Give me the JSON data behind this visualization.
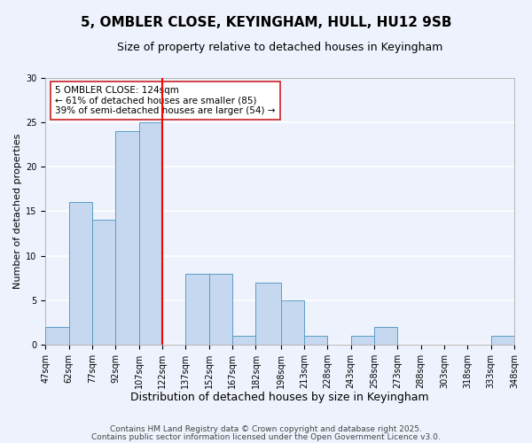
{
  "title": "5, OMBLER CLOSE, KEYINGHAM, HULL, HU12 9SB",
  "subtitle": "Size of property relative to detached houses in Keyingham",
  "xlabel": "Distribution of detached houses by size in Keyingham",
  "ylabel": "Number of detached properties",
  "bin_edges": [
    47,
    62,
    77,
    92,
    107,
    122,
    137,
    152,
    167,
    182,
    198,
    213,
    228,
    243,
    258,
    273,
    288,
    303,
    318,
    333,
    348
  ],
  "counts": [
    2,
    16,
    14,
    24,
    25,
    0,
    8,
    8,
    1,
    7,
    5,
    1,
    0,
    1,
    2,
    0,
    0,
    0,
    0,
    1
  ],
  "bar_color": "#c5d8f0",
  "bar_edge_color": "#5a9dc8",
  "vline_x": 122,
  "vline_color": "red",
  "annotation_text": "5 OMBLER CLOSE: 124sqm\n← 61% of detached houses are smaller (85)\n39% of semi-detached houses are larger (54) →",
  "ylim": [
    0,
    30
  ],
  "yticks": [
    0,
    5,
    10,
    15,
    20,
    25,
    30
  ],
  "tick_labels": [
    "47sqm",
    "62sqm",
    "77sqm",
    "92sqm",
    "107sqm",
    "122sqm",
    "137sqm",
    "152sqm",
    "167sqm",
    "182sqm",
    "198sqm",
    "213sqm",
    "228sqm",
    "243sqm",
    "258sqm",
    "273sqm",
    "288sqm",
    "303sqm",
    "318sqm",
    "333sqm",
    "348sqm"
  ],
  "footer_line1": "Contains HM Land Registry data © Crown copyright and database right 2025.",
  "footer_line2": "Contains public sector information licensed under the Open Government Licence v3.0.",
  "background_color": "#eef2fc",
  "grid_color": "#ffffff",
  "title_fontsize": 11,
  "subtitle_fontsize": 9,
  "xlabel_fontsize": 9,
  "ylabel_fontsize": 8,
  "tick_fontsize": 7,
  "annotation_fontsize": 7.5,
  "footer_fontsize": 6.5
}
